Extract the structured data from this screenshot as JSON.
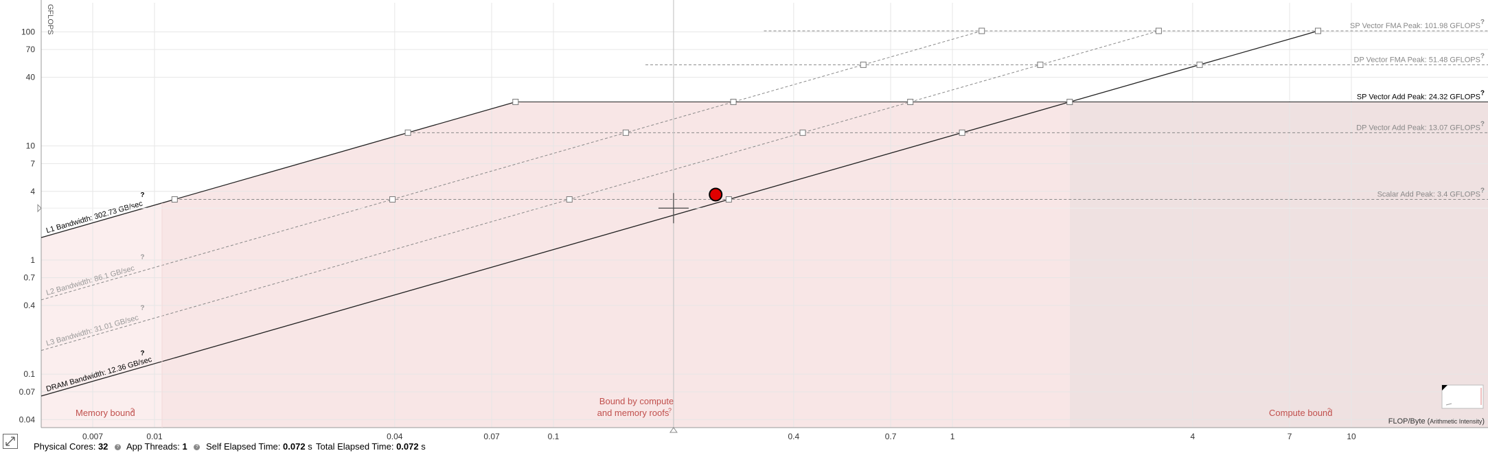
{
  "chart_data": {
    "type": "scatter",
    "xlabel": "FLOP/Byte",
    "xlabel_note": "Arithmetic Intensity",
    "ylabel": "GFLOPS",
    "x_scale": "log",
    "y_scale": "log",
    "xlim": [
      0.0052,
      22
    ],
    "ylim": [
      0.034,
      180
    ],
    "x_ticks": [
      {
        "value": 0.007,
        "label": "0.007"
      },
      {
        "value": 0.01,
        "label": "0.01"
      },
      {
        "value": 0.04,
        "label": "0.04"
      },
      {
        "value": 0.07,
        "label": "0.07"
      },
      {
        "value": 0.1,
        "label": "0.1"
      },
      {
        "value": 0.4,
        "label": "0.4"
      },
      {
        "value": 0.7,
        "label": "0.7"
      },
      {
        "value": 1,
        "label": "1"
      },
      {
        "value": 4,
        "label": "4"
      },
      {
        "value": 7,
        "label": "7"
      },
      {
        "value": 10,
        "label": "10"
      }
    ],
    "y_ticks": [
      {
        "value": 0.04,
        "label": "0.04"
      },
      {
        "value": 0.07,
        "label": "0.07"
      },
      {
        "value": 0.1,
        "label": "0.1"
      },
      {
        "value": 0.4,
        "label": "0.4"
      },
      {
        "value": 0.7,
        "label": "0.7"
      },
      {
        "value": 1,
        "label": "1"
      },
      {
        "value": 4,
        "label": "4"
      },
      {
        "value": 7,
        "label": "7"
      },
      {
        "value": 10,
        "label": "10"
      },
      {
        "value": 40,
        "label": "40"
      },
      {
        "value": 70,
        "label": "70"
      },
      {
        "value": 100,
        "label": "100"
      }
    ],
    "bandwidth_roofs": [
      {
        "name": "L1 Bandwidth",
        "label": "L1 Bandwidth: 302.73 GB/sec",
        "gb_per_sec": 302.73,
        "style": "solid",
        "color": "#000000"
      },
      {
        "name": "L2 Bandwidth",
        "label": "L2 Bandwidth: 86.1 GB/sec",
        "gb_per_sec": 86.1,
        "style": "dashed",
        "color": "#999999"
      },
      {
        "name": "L3 Bandwidth",
        "label": "L3 Bandwidth: 31.01 GB/sec",
        "gb_per_sec": 31.01,
        "style": "dashed",
        "color": "#999999"
      },
      {
        "name": "DRAM Bandwidth",
        "label": "DRAM Bandwidth: 12.36 GB/sec",
        "gb_per_sec": 12.36,
        "style": "solid",
        "color": "#000000"
      }
    ],
    "compute_roofs": [
      {
        "name": "SP Vector FMA Peak",
        "label": "SP Vector FMA Peak: 101.98 GFLOPS",
        "gflops": 101.98,
        "style": "dashed",
        "color": "#999999"
      },
      {
        "name": "DP Vector FMA Peak",
        "label": "DP Vector FMA Peak: 51.48 GFLOPS",
        "gflops": 51.48,
        "style": "dashed",
        "color": "#999999"
      },
      {
        "name": "SP Vector Add Peak",
        "label": "SP Vector Add Peak: 24.32 GFLOPS",
        "gflops": 24.32,
        "style": "solid",
        "color": "#000000"
      },
      {
        "name": "DP Vector Add Peak",
        "label": "DP Vector Add Peak: 13.07 GFLOPS",
        "gflops": 13.07,
        "style": "dashed",
        "color": "#999999"
      },
      {
        "name": "Scalar Add Peak",
        "label": "Scalar Add Peak: 3.4 GFLOPS",
        "gflops": 3.4,
        "style": "dashed",
        "color": "#999999"
      }
    ],
    "points": [
      {
        "x": 0.255,
        "y": 3.75,
        "color": "#e00000"
      }
    ],
    "crosshair": {
      "x": 0.2,
      "y": 2.85
    },
    "regions": {
      "memory_bound": "Memory bound",
      "both_bound_line1": "Bound by compute",
      "both_bound_line2": "and memory roofs",
      "compute_bound": "Compute bound"
    },
    "colors": {
      "region_fill": "#f8e6e6",
      "compute_region_fill": "#efe1e1",
      "memory_region_fill": "#fbeeee",
      "region_text": "#c0504d",
      "point": "#e00000"
    },
    "help_mark": "?"
  },
  "status": {
    "physical_cores_label": "Physical Cores:",
    "physical_cores_value": "32",
    "app_threads_label": "App Threads:",
    "app_threads_value": "1",
    "self_elapsed_label": "Self Elapsed Time:",
    "self_elapsed_value": "0.072",
    "self_elapsed_unit": "s",
    "total_elapsed_label": "Total Elapsed Time:",
    "total_elapsed_value": "0.072",
    "total_elapsed_unit": "s"
  },
  "icons": {
    "expand": "expand-icon",
    "help": "help-icon"
  }
}
